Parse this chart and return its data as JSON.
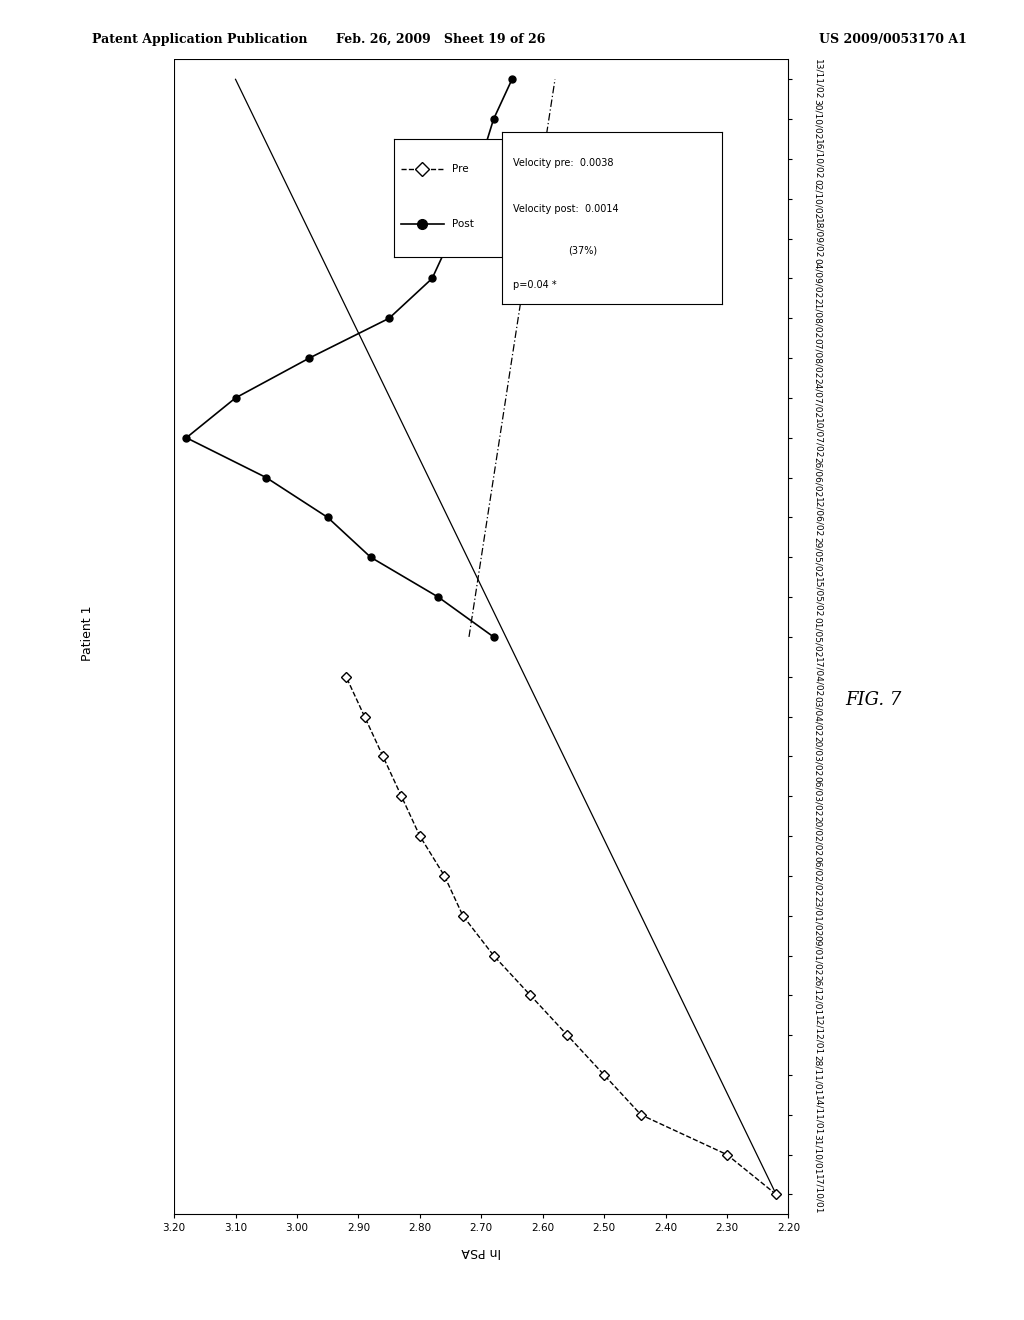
{
  "header_left": "Patent Application Publication",
  "header_center": "Feb. 26, 2009   Sheet 19 of 26",
  "header_right": "US 2009/0053170 A1",
  "fig_label": "FIG. 7",
  "patient_label": "Patient 1",
  "xlabel": "ln PSA",
  "xmin": 2.2,
  "xmax": 3.2,
  "xticks": [
    2.2,
    2.3,
    2.4,
    2.5,
    2.6,
    2.7,
    2.8,
    2.9,
    3.0,
    3.1,
    3.2
  ],
  "dates": [
    "17/10/01",
    "31/10/01",
    "14/11/01",
    "28/11/01",
    "12/12/01",
    "26/12/01",
    "09/01/02",
    "23/01/02",
    "06/02/02",
    "20/02/02",
    "06/03/02",
    "20/03/02",
    "03/04/02",
    "17/04/02",
    "01/05/02",
    "15/05/02",
    "29/05/02",
    "12/06/02",
    "26/06/02",
    "10/07/02",
    "24/07/02",
    "07/08/02",
    "21/08/02",
    "04/09/02",
    "18/09/02",
    "02/10/02",
    "16/10/02",
    "30/10/02",
    "13/11/02"
  ],
  "pre_indices": [
    0,
    1,
    2,
    3,
    4,
    5,
    6,
    7,
    8,
    9,
    10,
    11,
    12,
    13
  ],
  "pre_values": [
    2.22,
    2.3,
    2.44,
    2.5,
    2.56,
    2.62,
    2.68,
    2.73,
    2.76,
    2.8,
    2.83,
    2.86,
    2.89,
    2.92
  ],
  "post_indices": [
    14,
    15,
    16,
    17,
    18,
    19,
    20,
    21,
    22,
    23,
    24,
    25,
    26,
    27,
    28
  ],
  "post_values": [
    2.68,
    2.77,
    2.88,
    2.95,
    3.05,
    3.18,
    3.1,
    2.98,
    2.85,
    2.78,
    2.75,
    2.72,
    2.7,
    2.68,
    2.65
  ],
  "pre_trend_indices": [
    0,
    28
  ],
  "pre_trend_values": [
    2.22,
    3.1
  ],
  "post_trend_indices": [
    14,
    28
  ],
  "post_trend_values": [
    2.72,
    2.58
  ],
  "velocity_pre_text": "Velocity pre:  0.0038",
  "velocity_post_text": "Velocity post:  0.0014",
  "velocity_post_pct": "(37%)",
  "p_value_text": "p=0.04 *"
}
